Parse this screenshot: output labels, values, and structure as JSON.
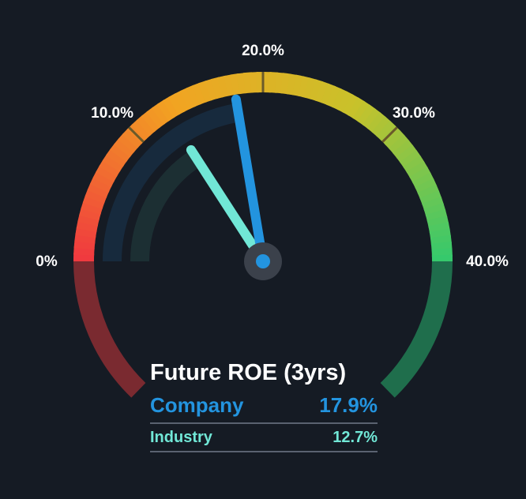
{
  "chart_data": {
    "type": "gauge",
    "title": "Future ROE (3yrs)",
    "range": [
      0,
      40
    ],
    "ticks": [
      {
        "value": 0,
        "label": "0%"
      },
      {
        "value": 10,
        "label": "10.0%"
      },
      {
        "value": 20,
        "label": "20.0%"
      },
      {
        "value": 30,
        "label": "30.0%"
      },
      {
        "value": 40,
        "label": "40.0%"
      }
    ],
    "series": [
      {
        "name": "Company",
        "value": 17.9,
        "display": "17.9%",
        "color": "#2394df"
      },
      {
        "name": "Industry",
        "value": 12.7,
        "display": "12.7%",
        "color": "#71e7d6"
      }
    ],
    "gradient_colors": [
      "#f0383f",
      "#f2a322",
      "#c9c22a",
      "#34c96d"
    ],
    "lower_arc_colors": [
      "#7a2a30",
      "#1f6e4c"
    ]
  }
}
